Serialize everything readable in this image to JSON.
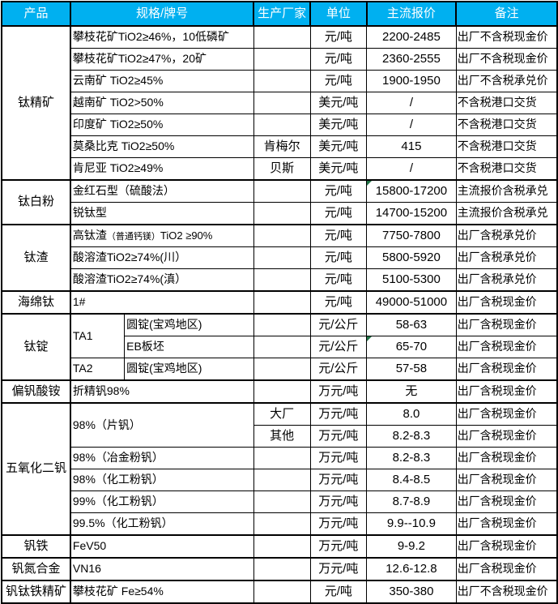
{
  "table": {
    "header": {
      "product": "产品",
      "spec": "规格/牌号",
      "maker": "生产厂家",
      "unit": "单位",
      "price": "主流报价",
      "note": "备注"
    }
  },
  "colors": {
    "header_bg": "#00B0F0",
    "header_text": "#FFFFFF",
    "grid": "#000000",
    "flag_triangle": "#217346"
  },
  "sections": [
    {
      "product": "钛精矿",
      "rows": [
        {
          "spec": "攀枝花矿TiO2≥46%，10低磷矿",
          "maker": "",
          "unit": "元/吨",
          "price": "2200-2485",
          "note": "出厂不含税现金价"
        },
        {
          "spec": "攀枝花矿TiO2≥47%，20矿",
          "maker": "",
          "unit": "元/吨",
          "price": "2360-2555",
          "note": "出厂不含税现金价"
        },
        {
          "spec": "云南矿 TiO2≥45%",
          "maker": "",
          "unit": "元/吨",
          "price": "1900-1950",
          "note": "出厂不含税承兑价"
        },
        {
          "spec": "越南矿 TiO2>50%",
          "maker": "",
          "unit": "美元/吨",
          "price": "/",
          "note": "不含税港口交货"
        },
        {
          "spec": "印度矿 TiO2≥50%",
          "maker": "",
          "unit": "美元/吨",
          "price": "/",
          "note": "不含税港口交货"
        },
        {
          "spec": "莫桑比克 TiO2≥50%",
          "maker": "肯梅尔",
          "unit": "美元/吨",
          "price": "415",
          "note": "不含税港口交货"
        },
        {
          "spec": "肯尼亚 TiO2≥49%",
          "maker": "贝斯",
          "unit": "美元/吨",
          "price": "/",
          "note": "不含税港口交货"
        }
      ]
    },
    {
      "product": "钛白粉",
      "rows": [
        {
          "spec": "金红石型（硫酸法）",
          "maker": "",
          "unit": "元/吨",
          "price": "15800-17200",
          "note": "主流报价含税承兑",
          "flag": true
        },
        {
          "spec": "锐钛型",
          "maker": "",
          "unit": "元/吨",
          "price": "14700-15200",
          "note": "主流报价含税承兑"
        }
      ]
    },
    {
      "product": "钛渣",
      "rows": [
        {
          "spec_parts": [
            {
              "t": "高钛渣",
              "size": "normal"
            },
            {
              "t": "（普通钙镁）",
              "size": "small"
            },
            {
              "t": "TiO2 ≥90%",
              "size": "mid"
            }
          ],
          "maker": "",
          "unit": "元/吨",
          "price": "7750-7800",
          "note": "出厂含税承兑价"
        },
        {
          "spec": "酸溶渣TiO2≥74%(川）",
          "maker": "",
          "unit": "元/吨",
          "price": "5800-5920",
          "note": "出厂含税承兑价"
        },
        {
          "spec": "酸溶渣TiO2≥74%(滇）",
          "maker": "",
          "unit": "元/吨",
          "price": "5100-5300",
          "note": "出厂含税承兑价"
        }
      ]
    },
    {
      "product": "海绵钛",
      "rows": [
        {
          "spec": "1#",
          "maker": "",
          "unit": "元/吨",
          "price": "49000-51000",
          "note": "出厂含税现金价"
        }
      ]
    },
    {
      "product": "钛锭",
      "rows": [
        {
          "sub": "TA1",
          "sub_rowspan": 2,
          "spec2": "圆锭(宝鸡地区)",
          "maker": "",
          "unit": "元/公斤",
          "price": "58-63",
          "note": "出厂含税现金价"
        },
        {
          "spec2": "EB板坯",
          "maker": "",
          "unit": "元/公斤",
          "price": "65-70",
          "note": "出厂含税现金价",
          "flag": true
        },
        {
          "sub": "TA2",
          "spec2": "圆锭(宝鸡地区)",
          "maker": "",
          "unit": "元/公斤",
          "price": "57-58",
          "note": "出厂含税现金价"
        }
      ]
    },
    {
      "product": "偏钒酸铵",
      "rows": [
        {
          "spec": "折精钒98%",
          "maker": "",
          "unit": "万元/吨",
          "price": "无",
          "note": "出厂含税现金价"
        }
      ]
    },
    {
      "product": "五氧化二钒",
      "rows": [
        {
          "spec": "98%（片钒）",
          "spec_rowspan": 2,
          "maker": "大厂",
          "unit": "万元/吨",
          "price": "8.0",
          "note": "出厂含税现金价"
        },
        {
          "spec_omit": true,
          "maker": "其他",
          "unit": "万元/吨",
          "price": "8.2-8.3",
          "note": "出厂含税现金价"
        },
        {
          "spec": "98%（冶金粉钒）",
          "maker": "",
          "unit": "万元/吨",
          "price": "8.2-8.3",
          "note": "出厂含税现金价"
        },
        {
          "spec": "98%（化工粉钒）",
          "maker": "",
          "unit": "万元/吨",
          "price": "8.4-8.5",
          "note": "出厂含税现金价"
        },
        {
          "spec": "99%（化工粉钒）",
          "maker": "",
          "unit": "万元/吨",
          "price": "8.7-8.9",
          "note": "出厂含税现金价"
        },
        {
          "spec": "99.5%（化工粉钒）",
          "maker": "",
          "unit": "万元/吨",
          "price": "9.9--10.9",
          "note": "出厂含税现金价"
        }
      ]
    },
    {
      "product": "钒铁",
      "rows": [
        {
          "spec": "FeV50",
          "maker": "",
          "unit": "万元/吨",
          "price": "9-9.2",
          "note": "出厂含税现金价"
        }
      ]
    },
    {
      "product": "钒氮合金",
      "rows": [
        {
          "spec": "VN16",
          "maker": "",
          "unit": "万元/吨",
          "price": "12.6-12.8",
          "note": "出厂含税现金价"
        }
      ]
    },
    {
      "product": "钒钛铁精矿",
      "rows": [
        {
          "spec": "攀枝花矿 Fe≥54%",
          "maker": "",
          "unit": "元/吨",
          "price": "350-380",
          "note": "出厂不含税现金价"
        }
      ]
    }
  ]
}
